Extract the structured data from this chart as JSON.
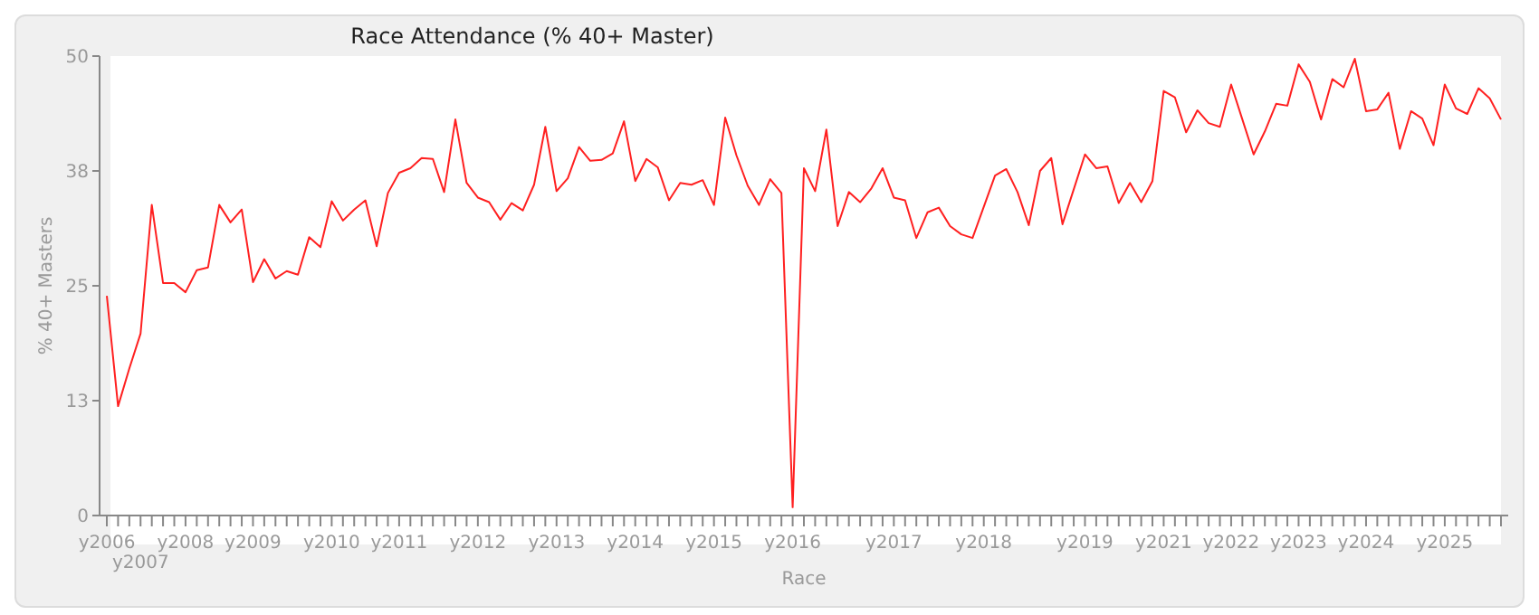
{
  "chart_data": {
    "type": "line",
    "title": "Race Attendance (% 40+ Master)",
    "xlabel": "Race",
    "ylabel": "% 40+ Masters",
    "categories": [
      "y2006",
      null,
      null,
      "y2007",
      null,
      null,
      null,
      "y2008",
      null,
      null,
      null,
      null,
      null,
      "y2009",
      null,
      null,
      null,
      null,
      null,
      null,
      "y2010",
      null,
      null,
      null,
      null,
      null,
      "y2011",
      null,
      null,
      null,
      null,
      null,
      null,
      "y2012",
      null,
      null,
      null,
      null,
      null,
      null,
      "y2013",
      null,
      null,
      null,
      null,
      null,
      null,
      "y2014",
      null,
      null,
      null,
      null,
      null,
      null,
      "y2015",
      null,
      null,
      null,
      null,
      null,
      null,
      "y2016",
      null,
      null,
      null,
      null,
      null,
      null,
      null,
      null,
      "y2017",
      null,
      null,
      null,
      null,
      null,
      null,
      null,
      "y2018",
      null,
      null,
      null,
      null,
      null,
      null,
      null,
      null,
      "y2019",
      null,
      null,
      null,
      null,
      null,
      null,
      "y2021",
      null,
      null,
      null,
      null,
      null,
      "y2022",
      null,
      null,
      null,
      null,
      null,
      "y2023",
      null,
      null,
      null,
      null,
      null,
      "y2024",
      null,
      null,
      null,
      null,
      null,
      null,
      "y2025",
      null,
      null,
      null,
      null,
      null
    ],
    "series": [
      {
        "color": "#ff2020",
        "values": [
          23.9,
          11.9,
          16.0,
          19.8,
          33.8,
          25.3,
          25.3,
          24.3,
          26.7,
          27.0,
          33.8,
          31.9,
          33.3,
          25.4,
          27.9,
          25.8,
          26.6,
          26.2,
          30.3,
          29.2,
          34.2,
          32.1,
          33.3,
          34.3,
          29.3,
          35.1,
          37.3,
          37.8,
          38.9,
          38.8,
          35.2,
          43.1,
          36.2,
          34.6,
          34.1,
          32.2,
          34.0,
          33.2,
          36.0,
          42.3,
          35.3,
          36.7,
          40.1,
          38.6,
          38.7,
          39.4,
          42.9,
          36.4,
          38.8,
          37.9,
          34.3,
          36.2,
          36.0,
          36.5,
          33.8,
          43.3,
          39.2,
          35.9,
          33.8,
          36.6,
          35.1,
          0.9,
          37.8,
          35.3,
          42.0,
          31.5,
          35.2,
          34.1,
          35.6,
          37.8,
          34.6,
          34.3,
          30.2,
          33.0,
          33.5,
          31.5,
          30.6,
          30.2,
          33.6,
          37.0,
          37.7,
          35.2,
          31.6,
          37.5,
          38.9,
          31.7,
          35.5,
          39.3,
          37.8,
          38.0,
          34.0,
          36.2,
          34.1,
          36.4,
          46.2,
          45.5,
          41.7,
          44.1,
          42.7,
          42.3,
          46.9,
          43.1,
          39.3,
          41.8,
          44.8,
          44.6,
          49.1,
          47.2,
          43.1,
          47.5,
          46.6,
          49.7,
          44.0,
          44.2,
          46.0,
          39.9,
          44.0,
          43.2,
          40.3,
          46.9,
          44.3,
          43.7,
          46.5,
          45.4,
          43.1
        ]
      }
    ],
    "ylim": [
      0,
      50
    ],
    "yticks": [
      0,
      {
        "value": 12.5,
        "label": "13"
      },
      25,
      {
        "value": 37.5,
        "label": "38"
      },
      50
    ],
    "grid": false,
    "legend": false,
    "marker": "none",
    "line_style": "solid"
  }
}
